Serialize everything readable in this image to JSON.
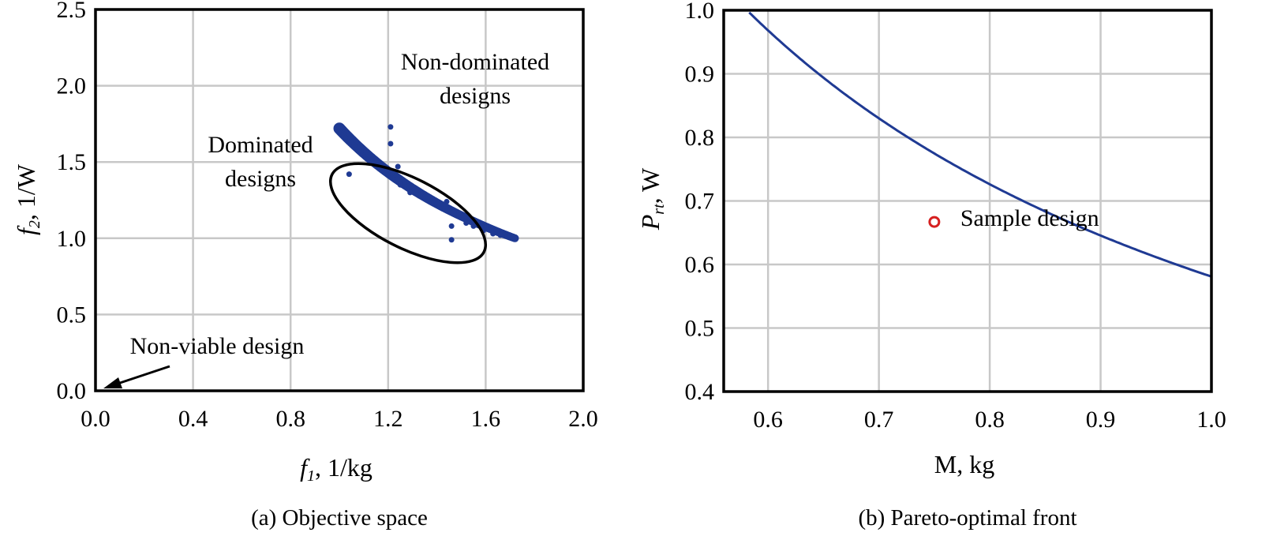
{
  "chart_data": [
    {
      "type": "scatter",
      "caption": "(a) Objective space",
      "xlabel": {
        "italic": "f",
        "sub": "1",
        "rest": ", 1/kg"
      },
      "ylabel": {
        "italic": "f",
        "sub": "2",
        "rest": ", 1/W"
      },
      "xlim": [
        0,
        2.0
      ],
      "ylim": [
        0,
        2.5
      ],
      "xticks": [
        "0.0",
        "0.4",
        "0.8",
        "1.2",
        "1.6",
        "2.0"
      ],
      "yticks": [
        "0.0",
        "0.5",
        "1.0",
        "1.5",
        "2.0",
        "2.5"
      ],
      "grid": true,
      "series_color": "#1f3a93",
      "series": [
        {
          "label_lines": [
            "Non-dominated",
            "designs"
          ],
          "kind": "front",
          "x_start": 1.0,
          "x_end": 1.72,
          "formula": "y = 1.72 / x"
        },
        {
          "label_lines": [
            "Dominated",
            "designs"
          ],
          "kind": "points",
          "points": [
            [
              1.04,
              1.42
            ],
            [
              1.21,
              1.62
            ],
            [
              1.21,
              1.73
            ],
            [
              1.24,
              1.47
            ],
            [
              1.25,
              1.35
            ],
            [
              1.29,
              1.3
            ],
            [
              1.44,
              1.24
            ],
            [
              1.47,
              1.17
            ],
            [
              1.46,
              1.08
            ],
            [
              1.46,
              0.99
            ],
            [
              1.52,
              1.1
            ],
            [
              1.55,
              1.08
            ],
            [
              1.59,
              1.05
            ],
            [
              1.63,
              1.03
            ],
            [
              1.66,
              1.02
            ],
            [
              1.69,
              1.01
            ]
          ]
        }
      ],
      "annotations": [
        {
          "text": "Non-viable design",
          "points_to": [
            0.0,
            0.0
          ]
        }
      ]
    },
    {
      "type": "line",
      "caption": "(b) Pareto-optimal front",
      "xlabel": {
        "text": "M, kg"
      },
      "ylabel": {
        "italic": "P",
        "sub": "rt",
        "rest": ", W"
      },
      "xlim": [
        0.56,
        1.0
      ],
      "ylim": [
        0.4,
        1.0
      ],
      "xticks": [
        "0.6",
        "0.7",
        "0.8",
        "0.9",
        "1.0"
      ],
      "yticks": [
        "0.4",
        "0.5",
        "0.6",
        "0.7",
        "0.8",
        "0.9",
        "1.0"
      ],
      "grid": true,
      "series_color": "#1f3a93",
      "series": [
        {
          "formula": "P = 0.581 / M",
          "x_start": 0.583,
          "x_end": 1.0
        }
      ],
      "highlight": {
        "label": "Sample design",
        "x": 0.75,
        "y": 0.667,
        "color": "#d62020"
      }
    }
  ]
}
